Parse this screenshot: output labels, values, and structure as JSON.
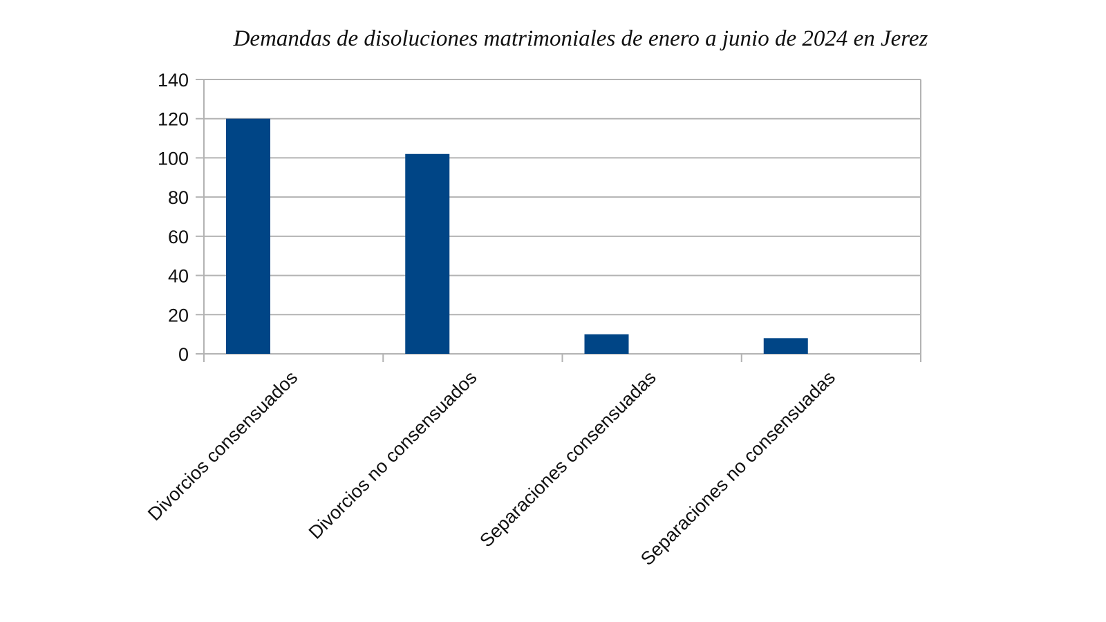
{
  "chart_data": {
    "type": "bar",
    "title": "Demandas de disoluciones matrimoniales de enero a junio de 2024 en Jerez",
    "xlabel": "",
    "ylabel": "",
    "categories": [
      "Divorcios consensuados",
      "Divorcios no consensuados",
      "Separaciones consensuadas",
      "Separaciones no consensuadas"
    ],
    "values": [
      120,
      102,
      10,
      8
    ],
    "ylim": [
      0,
      140
    ],
    "yticks": [
      0,
      20,
      40,
      60,
      80,
      100,
      120,
      140
    ],
    "grid": true,
    "legend": "none",
    "bar_color": "#004586"
  }
}
